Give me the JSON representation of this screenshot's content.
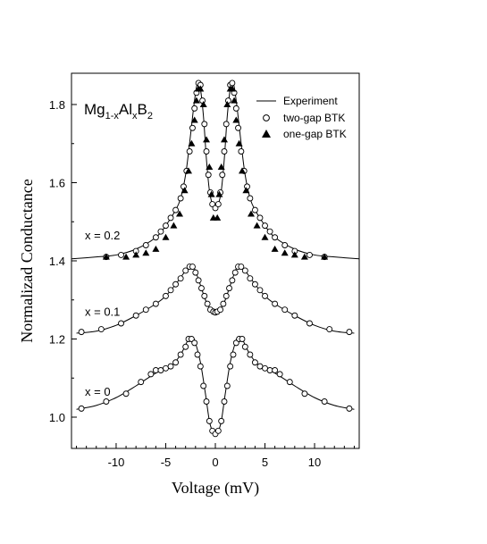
{
  "chart_data": {
    "type": "scatter",
    "title": "",
    "xlabel": "Voltage (mV)",
    "ylabel": "Normalizad Conductance",
    "xlim": [
      -14.5,
      14.5
    ],
    "ylim": [
      0.92,
      1.88
    ],
    "xticks": [
      -10,
      -5,
      0,
      5,
      10
    ],
    "yticks": [
      1.0,
      1.2,
      1.4,
      1.6,
      1.8
    ],
    "grid": false,
    "legend_position": "top-right",
    "legend": {
      "experiment": "Experiment",
      "two_gap": "two-gap BTK",
      "one_gap": "one-gap BTK"
    },
    "compound": {
      "base": "Mg",
      "sub1": "1-x",
      "el2": "Al",
      "sub2": "x",
      "el3": "B",
      "sub3": "2"
    },
    "curve_labels": [
      "x = 0.2",
      "x = 0.1",
      "x = 0"
    ],
    "series": [
      {
        "label": "x = 0",
        "experiment": {
          "x": [
            -14,
            -12,
            -10,
            -8,
            -6.5,
            -5.5,
            -4.5,
            -3.5,
            -2.7,
            -2.3,
            -2.0,
            -1.5,
            -1.0,
            -0.6,
            -0.3,
            0,
            0.3,
            0.6,
            1.0,
            1.5,
            2.0,
            2.3,
            2.7,
            3.5,
            4.5,
            5.5,
            6.5,
            8,
            10,
            12,
            14
          ],
          "y": [
            1.02,
            1.03,
            1.05,
            1.08,
            1.105,
            1.12,
            1.13,
            1.16,
            1.2,
            1.205,
            1.19,
            1.14,
            1.06,
            0.99,
            0.965,
            0.955,
            0.965,
            0.99,
            1.06,
            1.14,
            1.19,
            1.205,
            1.2,
            1.16,
            1.13,
            1.12,
            1.105,
            1.08,
            1.05,
            1.03,
            1.02
          ]
        },
        "two_gap": {
          "x": [
            -13.5,
            -11,
            -9,
            -7.5,
            -6.5,
            -6,
            -5.5,
            -5,
            -4.5,
            -4,
            -3.5,
            -3,
            -2.7,
            -2.4,
            -2.1,
            -1.8,
            -1.5,
            -1.2,
            -0.9,
            -0.6,
            -0.3,
            0,
            0.3,
            0.6,
            0.9,
            1.2,
            1.5,
            1.8,
            2.1,
            2.4,
            2.7,
            3,
            3.5,
            4,
            4.5,
            5,
            5.5,
            6,
            6.5,
            7.5,
            9,
            11,
            13.5
          ],
          "y": [
            1.022,
            1.04,
            1.06,
            1.09,
            1.11,
            1.12,
            1.12,
            1.125,
            1.13,
            1.14,
            1.16,
            1.18,
            1.2,
            1.2,
            1.19,
            1.16,
            1.13,
            1.08,
            1.04,
            0.99,
            0.965,
            0.957,
            0.965,
            0.99,
            1.04,
            1.08,
            1.13,
            1.16,
            1.19,
            1.2,
            1.2,
            1.18,
            1.16,
            1.14,
            1.13,
            1.125,
            1.12,
            1.12,
            1.11,
            1.09,
            1.06,
            1.04,
            1.022
          ]
        }
      },
      {
        "label": "x = 0.1",
        "experiment": {
          "x": [
            -14,
            -12,
            -10,
            -8,
            -6,
            -5,
            -4,
            -3,
            -2.5,
            -2.2,
            -1.8,
            -1.4,
            -1.0,
            -0.6,
            -0.3,
            0,
            0.3,
            0.6,
            1.0,
            1.4,
            1.8,
            2.2,
            2.5,
            3,
            4,
            5,
            6,
            8,
            10,
            12,
            14
          ],
          "y": [
            1.215,
            1.22,
            1.235,
            1.26,
            1.29,
            1.31,
            1.34,
            1.375,
            1.39,
            1.385,
            1.36,
            1.33,
            1.3,
            1.28,
            1.27,
            1.267,
            1.27,
            1.28,
            1.3,
            1.33,
            1.36,
            1.385,
            1.39,
            1.375,
            1.34,
            1.31,
            1.29,
            1.26,
            1.235,
            1.22,
            1.215
          ]
        },
        "two_gap": {
          "x": [
            -13.5,
            -11.5,
            -9.5,
            -8,
            -7,
            -6,
            -5,
            -4.5,
            -4,
            -3.5,
            -3,
            -2.6,
            -2.3,
            -2.0,
            -1.7,
            -1.4,
            -1.1,
            -0.8,
            -0.5,
            -0.2,
            0,
            0.2,
            0.5,
            0.8,
            1.1,
            1.4,
            1.7,
            2.0,
            2.3,
            2.6,
            3,
            3.5,
            4,
            4.5,
            5,
            6,
            7,
            8,
            9.5,
            11.5,
            13.5
          ],
          "y": [
            1.218,
            1.225,
            1.24,
            1.26,
            1.275,
            1.29,
            1.31,
            1.325,
            1.34,
            1.355,
            1.375,
            1.385,
            1.385,
            1.37,
            1.35,
            1.33,
            1.31,
            1.29,
            1.275,
            1.27,
            1.268,
            1.27,
            1.275,
            1.29,
            1.31,
            1.33,
            1.35,
            1.37,
            1.385,
            1.385,
            1.375,
            1.355,
            1.34,
            1.325,
            1.31,
            1.29,
            1.275,
            1.26,
            1.24,
            1.225,
            1.218
          ]
        }
      },
      {
        "label": "x = 0.2",
        "experiment": {
          "x": [
            -14.5,
            -12,
            -10,
            -8,
            -6,
            -5,
            -4,
            -3.5,
            -3,
            -2.6,
            -2.2,
            -1.9,
            -1.7,
            -1.5,
            -1.2,
            -0.9,
            -0.6,
            -0.3,
            0,
            0.3,
            0.6,
            0.9,
            1.2,
            1.5,
            1.7,
            1.9,
            2.2,
            2.6,
            3,
            3.5,
            4,
            5,
            6,
            8,
            10,
            12,
            14.5
          ],
          "y": [
            1.405,
            1.41,
            1.415,
            1.43,
            1.46,
            1.49,
            1.53,
            1.56,
            1.62,
            1.7,
            1.79,
            1.845,
            1.855,
            1.84,
            1.77,
            1.66,
            1.58,
            1.545,
            1.535,
            1.545,
            1.58,
            1.66,
            1.77,
            1.84,
            1.855,
            1.845,
            1.79,
            1.7,
            1.62,
            1.56,
            1.53,
            1.49,
            1.46,
            1.43,
            1.415,
            1.41,
            1.405
          ]
        },
        "two_gap": {
          "x": [
            -11,
            -9.5,
            -8,
            -7,
            -6,
            -5.5,
            -5,
            -4.5,
            -4,
            -3.5,
            -3.2,
            -2.9,
            -2.6,
            -2.3,
            -2.1,
            -1.9,
            -1.7,
            -1.5,
            -1.3,
            -1.1,
            -0.9,
            -0.7,
            -0.5,
            -0.3,
            0,
            0.3,
            0.5,
            0.7,
            0.9,
            1.1,
            1.3,
            1.5,
            1.7,
            1.9,
            2.1,
            2.3,
            2.6,
            2.9,
            3.2,
            3.5,
            4,
            4.5,
            5,
            5.5,
            6,
            7,
            8,
            9.5,
            11
          ],
          "y": [
            1.41,
            1.415,
            1.425,
            1.44,
            1.46,
            1.475,
            1.49,
            1.51,
            1.53,
            1.56,
            1.59,
            1.63,
            1.68,
            1.74,
            1.79,
            1.83,
            1.855,
            1.85,
            1.81,
            1.75,
            1.68,
            1.62,
            1.575,
            1.545,
            1.535,
            1.545,
            1.575,
            1.62,
            1.68,
            1.75,
            1.81,
            1.85,
            1.855,
            1.83,
            1.79,
            1.74,
            1.68,
            1.63,
            1.59,
            1.56,
            1.53,
            1.51,
            1.49,
            1.475,
            1.46,
            1.44,
            1.425,
            1.415,
            1.41
          ]
        },
        "one_gap": {
          "x": [
            -11,
            -9,
            -8,
            -7,
            -6,
            -5,
            -4.2,
            -3.6,
            -3.1,
            -2.7,
            -2.4,
            -2.1,
            -1.9,
            -1.7,
            -1.5,
            -1.2,
            -0.9,
            -0.6,
            -0.4,
            -0.2,
            0.2,
            0.4,
            0.6,
            0.9,
            1.2,
            1.5,
            1.7,
            1.9,
            2.1,
            2.4,
            2.7,
            3.1,
            3.6,
            4.2,
            5,
            6,
            7,
            8,
            9,
            11
          ],
          "y": [
            1.41,
            1.41,
            1.415,
            1.42,
            1.43,
            1.46,
            1.49,
            1.52,
            1.58,
            1.63,
            1.7,
            1.76,
            1.81,
            1.84,
            1.84,
            1.8,
            1.71,
            1.64,
            1.57,
            1.51,
            1.51,
            1.57,
            1.64,
            1.71,
            1.8,
            1.84,
            1.84,
            1.81,
            1.76,
            1.7,
            1.63,
            1.58,
            1.52,
            1.49,
            1.46,
            1.43,
            1.42,
            1.415,
            1.41,
            1.41
          ]
        }
      }
    ]
  }
}
